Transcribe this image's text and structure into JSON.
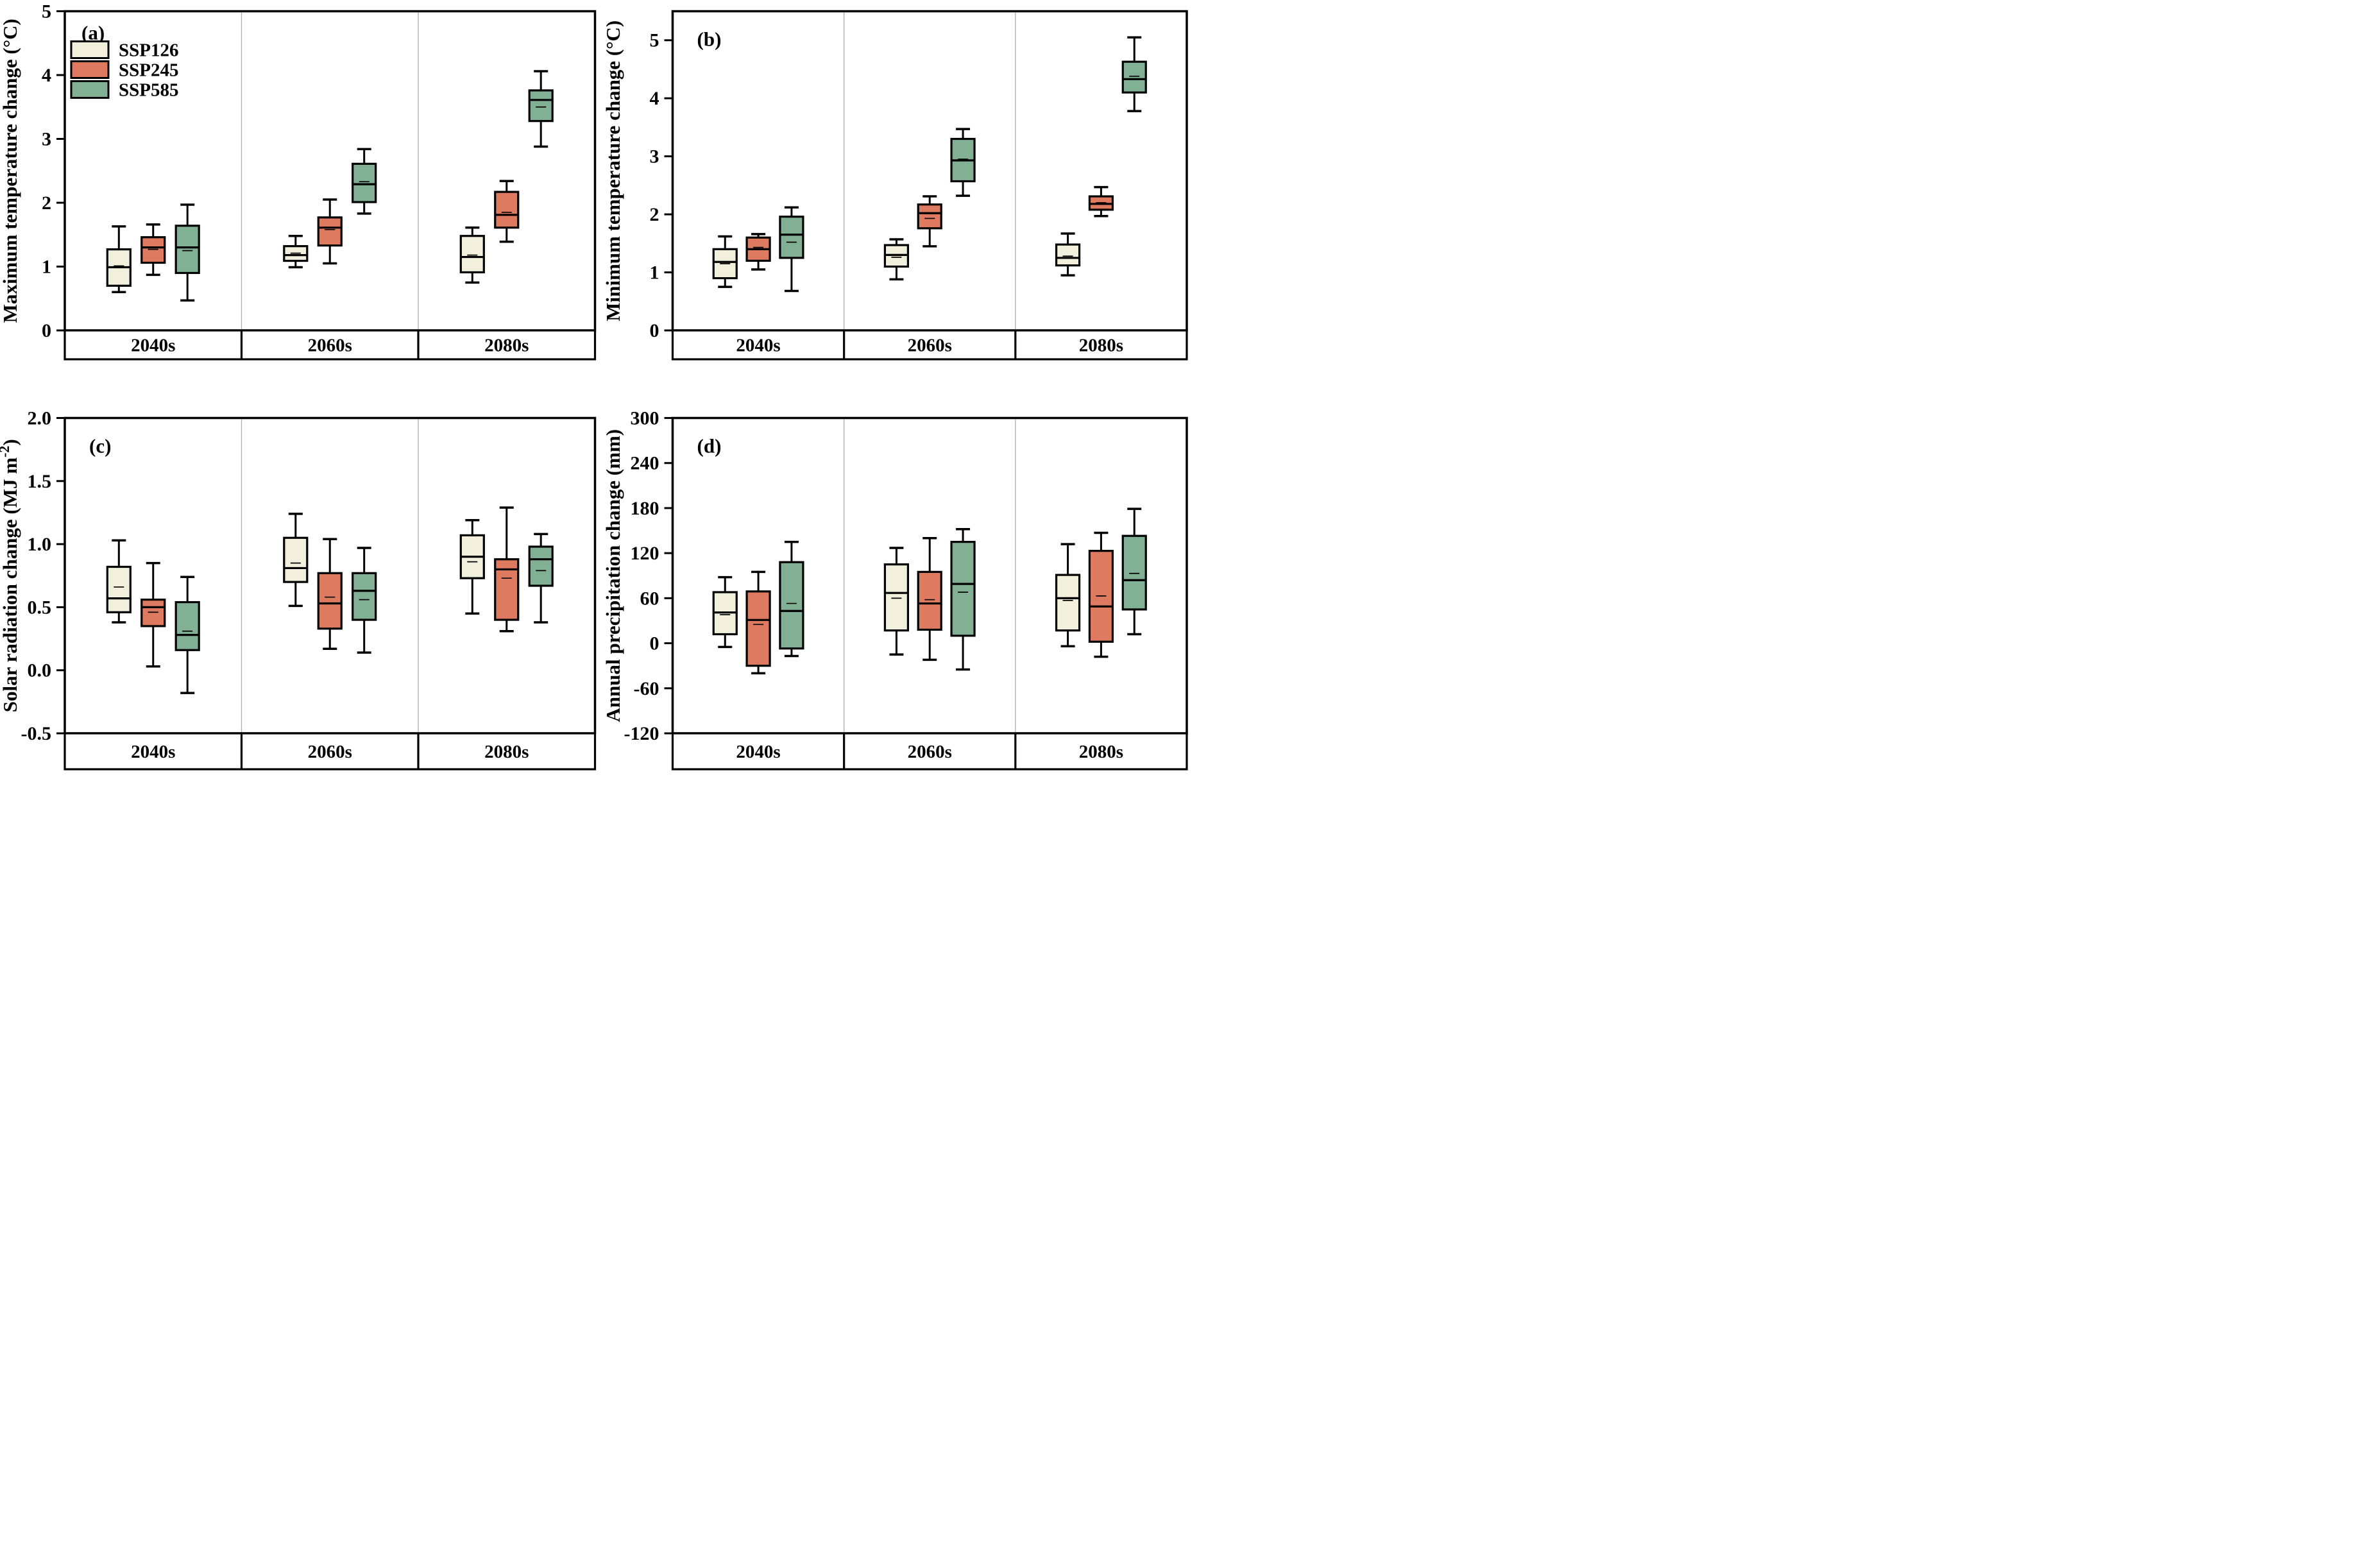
{
  "figure": {
    "background": "#ffffff",
    "panel_letters": [
      "(a)",
      "(b)",
      "(c)",
      "(d)"
    ]
  },
  "legend": {
    "location": "inside panel (a), upper left",
    "items": [
      {
        "label": "SSP126",
        "color": "#F2EFDC"
      },
      {
        "label": "SSP245",
        "color": "#DD7A5F"
      },
      {
        "label": "SSP585",
        "color": "#82B094"
      }
    ]
  },
  "colors": {
    "box_stroke": "#000000",
    "divider": "#ADADAD",
    "ssp126": "#F2EFDC",
    "ssp245": "#DD7A5F",
    "ssp585": "#82B094"
  },
  "chart_data": [
    {
      "type": "box",
      "panel_label": "(a)",
      "ylabel": "Maximum temperature change (°C)",
      "xlabel": "",
      "ylim": [
        0,
        5
      ],
      "grid": "vertical group dividers only",
      "legend_position": "upper-left",
      "show_legend": true,
      "yticks": [
        {
          "v": 0,
          "t": "0"
        },
        {
          "v": 1,
          "t": "1"
        },
        {
          "v": 2,
          "t": "2"
        },
        {
          "v": 3,
          "t": "3"
        },
        {
          "v": 4,
          "t": "4"
        },
        {
          "v": 5,
          "t": "5"
        }
      ],
      "categories": [
        "2040s",
        "2060s",
        "2080s"
      ],
      "series": [
        {
          "name": "SSP126",
          "color": "#F2EFDC",
          "boxes": [
            {
              "lo": 0.6,
              "q1": 0.7,
              "med": 0.99,
              "mean": 1.01,
              "q3": 1.27,
              "hi": 1.63
            },
            {
              "lo": 0.99,
              "q1": 1.09,
              "med": 1.18,
              "mean": 1.21,
              "q3": 1.32,
              "hi": 1.48
            },
            {
              "lo": 0.75,
              "q1": 0.91,
              "med": 1.15,
              "mean": 1.18,
              "q3": 1.48,
              "hi": 1.61
            }
          ]
        },
        {
          "name": "SSP245",
          "color": "#DD7A5F",
          "boxes": [
            {
              "lo": 0.87,
              "q1": 1.06,
              "med": 1.3,
              "mean": 1.27,
              "q3": 1.46,
              "hi": 1.66
            },
            {
              "lo": 1.05,
              "q1": 1.33,
              "med": 1.61,
              "mean": 1.58,
              "q3": 1.77,
              "hi": 2.05
            },
            {
              "lo": 1.39,
              "q1": 1.61,
              "med": 1.81,
              "mean": 1.85,
              "q3": 2.17,
              "hi": 2.34
            }
          ]
        },
        {
          "name": "SSP585",
          "color": "#82B094",
          "boxes": [
            {
              "lo": 0.47,
              "q1": 0.9,
              "med": 1.3,
              "mean": 1.25,
              "q3": 1.64,
              "hi": 1.97
            },
            {
              "lo": 1.83,
              "q1": 2.01,
              "med": 2.29,
              "mean": 2.33,
              "q3": 2.61,
              "hi": 2.84
            },
            {
              "lo": 2.88,
              "q1": 3.28,
              "med": 3.61,
              "mean": 3.5,
              "q3": 3.76,
              "hi": 4.06
            }
          ]
        }
      ]
    },
    {
      "type": "box",
      "panel_label": "(b)",
      "ylabel": "Minimum temperature change (°C)",
      "xlabel": "",
      "ylim": [
        0,
        5.5
      ],
      "grid": "vertical group dividers only",
      "show_legend": false,
      "yticks": [
        {
          "v": 0,
          "t": "0"
        },
        {
          "v": 1,
          "t": "1"
        },
        {
          "v": 2,
          "t": "2"
        },
        {
          "v": 3,
          "t": "3"
        },
        {
          "v": 4,
          "t": "4"
        },
        {
          "v": 5,
          "t": "5"
        }
      ],
      "categories": [
        "2040s",
        "2060s",
        "2080s"
      ],
      "series": [
        {
          "name": "SSP126",
          "color": "#F2EFDC",
          "boxes": [
            {
              "lo": 0.75,
              "q1": 0.9,
              "med": 1.18,
              "mean": 1.15,
              "q3": 1.4,
              "hi": 1.62
            },
            {
              "lo": 0.88,
              "q1": 1.1,
              "med": 1.3,
              "mean": 1.26,
              "q3": 1.47,
              "hi": 1.57
            },
            {
              "lo": 0.95,
              "q1": 1.12,
              "med": 1.25,
              "mean": 1.28,
              "q3": 1.48,
              "hi": 1.67
            }
          ]
        },
        {
          "name": "SSP245",
          "color": "#DD7A5F",
          "boxes": [
            {
              "lo": 1.05,
              "q1": 1.2,
              "med": 1.4,
              "mean": 1.43,
              "q3": 1.6,
              "hi": 1.66
            },
            {
              "lo": 1.45,
              "q1": 1.76,
              "med": 2.02,
              "mean": 1.93,
              "q3": 2.17,
              "hi": 2.31
            },
            {
              "lo": 1.97,
              "q1": 2.08,
              "med": 2.18,
              "mean": 2.2,
              "q3": 2.31,
              "hi": 2.47
            }
          ]
        },
        {
          "name": "SSP585",
          "color": "#82B094",
          "boxes": [
            {
              "lo": 0.68,
              "q1": 1.25,
              "med": 1.65,
              "mean": 1.52,
              "q3": 1.96,
              "hi": 2.12
            },
            {
              "lo": 2.32,
              "q1": 2.57,
              "med": 2.93,
              "mean": 2.95,
              "q3": 3.3,
              "hi": 3.47
            },
            {
              "lo": 3.78,
              "q1": 4.1,
              "med": 4.33,
              "mean": 4.38,
              "q3": 4.63,
              "hi": 5.05
            }
          ]
        }
      ]
    },
    {
      "type": "box",
      "panel_label": "(c)",
      "ylabel": "Solar radiation change (MJ m⁻²)",
      "xlabel": "",
      "ylim": [
        -0.5,
        2.0
      ],
      "grid": "vertical group dividers only",
      "show_legend": false,
      "yticks": [
        {
          "v": -0.5,
          "t": "-0.5"
        },
        {
          "v": 0,
          "t": "0.0"
        },
        {
          "v": 0.5,
          "t": "0.5"
        },
        {
          "v": 1.0,
          "t": "1.0"
        },
        {
          "v": 1.5,
          "t": "1.5"
        },
        {
          "v": 2.0,
          "t": "2.0"
        }
      ],
      "categories": [
        "2040s",
        "2060s",
        "2080s"
      ],
      "series": [
        {
          "name": "SSP126",
          "color": "#F2EFDC",
          "boxes": [
            {
              "lo": 0.38,
              "q1": 0.46,
              "med": 0.57,
              "mean": 0.66,
              "q3": 0.82,
              "hi": 1.03
            },
            {
              "lo": 0.51,
              "q1": 0.7,
              "med": 0.81,
              "mean": 0.85,
              "q3": 1.05,
              "hi": 1.24
            },
            {
              "lo": 0.45,
              "q1": 0.73,
              "med": 0.9,
              "mean": 0.86,
              "q3": 1.07,
              "hi": 1.19
            }
          ]
        },
        {
          "name": "SSP245",
          "color": "#DD7A5F",
          "boxes": [
            {
              "lo": 0.03,
              "q1": 0.35,
              "med": 0.5,
              "mean": 0.46,
              "q3": 0.56,
              "hi": 0.85
            },
            {
              "lo": 0.17,
              "q1": 0.33,
              "med": 0.53,
              "mean": 0.58,
              "q3": 0.77,
              "hi": 1.04
            },
            {
              "lo": 0.31,
              "q1": 0.4,
              "med": 0.8,
              "mean": 0.73,
              "q3": 0.88,
              "hi": 1.29
            }
          ]
        },
        {
          "name": "SSP585",
          "color": "#82B094",
          "boxes": [
            {
              "lo": -0.18,
              "q1": 0.16,
              "med": 0.28,
              "mean": 0.31,
              "q3": 0.54,
              "hi": 0.74
            },
            {
              "lo": 0.14,
              "q1": 0.4,
              "med": 0.63,
              "mean": 0.56,
              "q3": 0.77,
              "hi": 0.97
            },
            {
              "lo": 0.38,
              "q1": 0.67,
              "med": 0.88,
              "mean": 0.79,
              "q3": 0.98,
              "hi": 1.08
            }
          ]
        }
      ]
    },
    {
      "type": "box",
      "panel_label": "(d)",
      "ylabel": "Annual precipitation change (mm)",
      "xlabel": "",
      "ylim": [
        -120,
        300
      ],
      "grid": "vertical group dividers only",
      "show_legend": false,
      "yticks": [
        {
          "v": -120,
          "t": "-120"
        },
        {
          "v": -60,
          "t": "-60"
        },
        {
          "v": 0,
          "t": "0"
        },
        {
          "v": 60,
          "t": "60"
        },
        {
          "v": 120,
          "t": "120"
        },
        {
          "v": 180,
          "t": "180"
        },
        {
          "v": 240,
          "t": "240"
        },
        {
          "v": 300,
          "t": "300"
        }
      ],
      "categories": [
        "2040s",
        "2060s",
        "2080s"
      ],
      "series": [
        {
          "name": "SSP126",
          "color": "#F2EFDC",
          "boxes": [
            {
              "lo": -5,
              "q1": 12,
              "med": 41,
              "mean": 38,
              "q3": 68,
              "hi": 88
            },
            {
              "lo": -15,
              "q1": 17,
              "med": 67,
              "mean": 60,
              "q3": 105,
              "hi": 127
            },
            {
              "lo": -4,
              "q1": 17,
              "med": 60,
              "mean": 57,
              "q3": 91,
              "hi": 132
            }
          ]
        },
        {
          "name": "SSP245",
          "color": "#DD7A5F",
          "boxes": [
            {
              "lo": -40,
              "q1": -30,
              "med": 31,
              "mean": 25,
              "q3": 69,
              "hi": 95
            },
            {
              "lo": -22,
              "q1": 18,
              "med": 53,
              "mean": 58,
              "q3": 95,
              "hi": 140
            },
            {
              "lo": -18,
              "q1": 2,
              "med": 49,
              "mean": 63,
              "q3": 123,
              "hi": 147
            }
          ]
        },
        {
          "name": "SSP585",
          "color": "#82B094",
          "boxes": [
            {
              "lo": -17,
              "q1": -7,
              "med": 43,
              "mean": 53,
              "q3": 108,
              "hi": 135
            },
            {
              "lo": -35,
              "q1": 10,
              "med": 79,
              "mean": 68,
              "q3": 135,
              "hi": 152
            },
            {
              "lo": 12,
              "q1": 45,
              "med": 84,
              "mean": 93,
              "q3": 143,
              "hi": 179
            }
          ]
        }
      ]
    }
  ]
}
